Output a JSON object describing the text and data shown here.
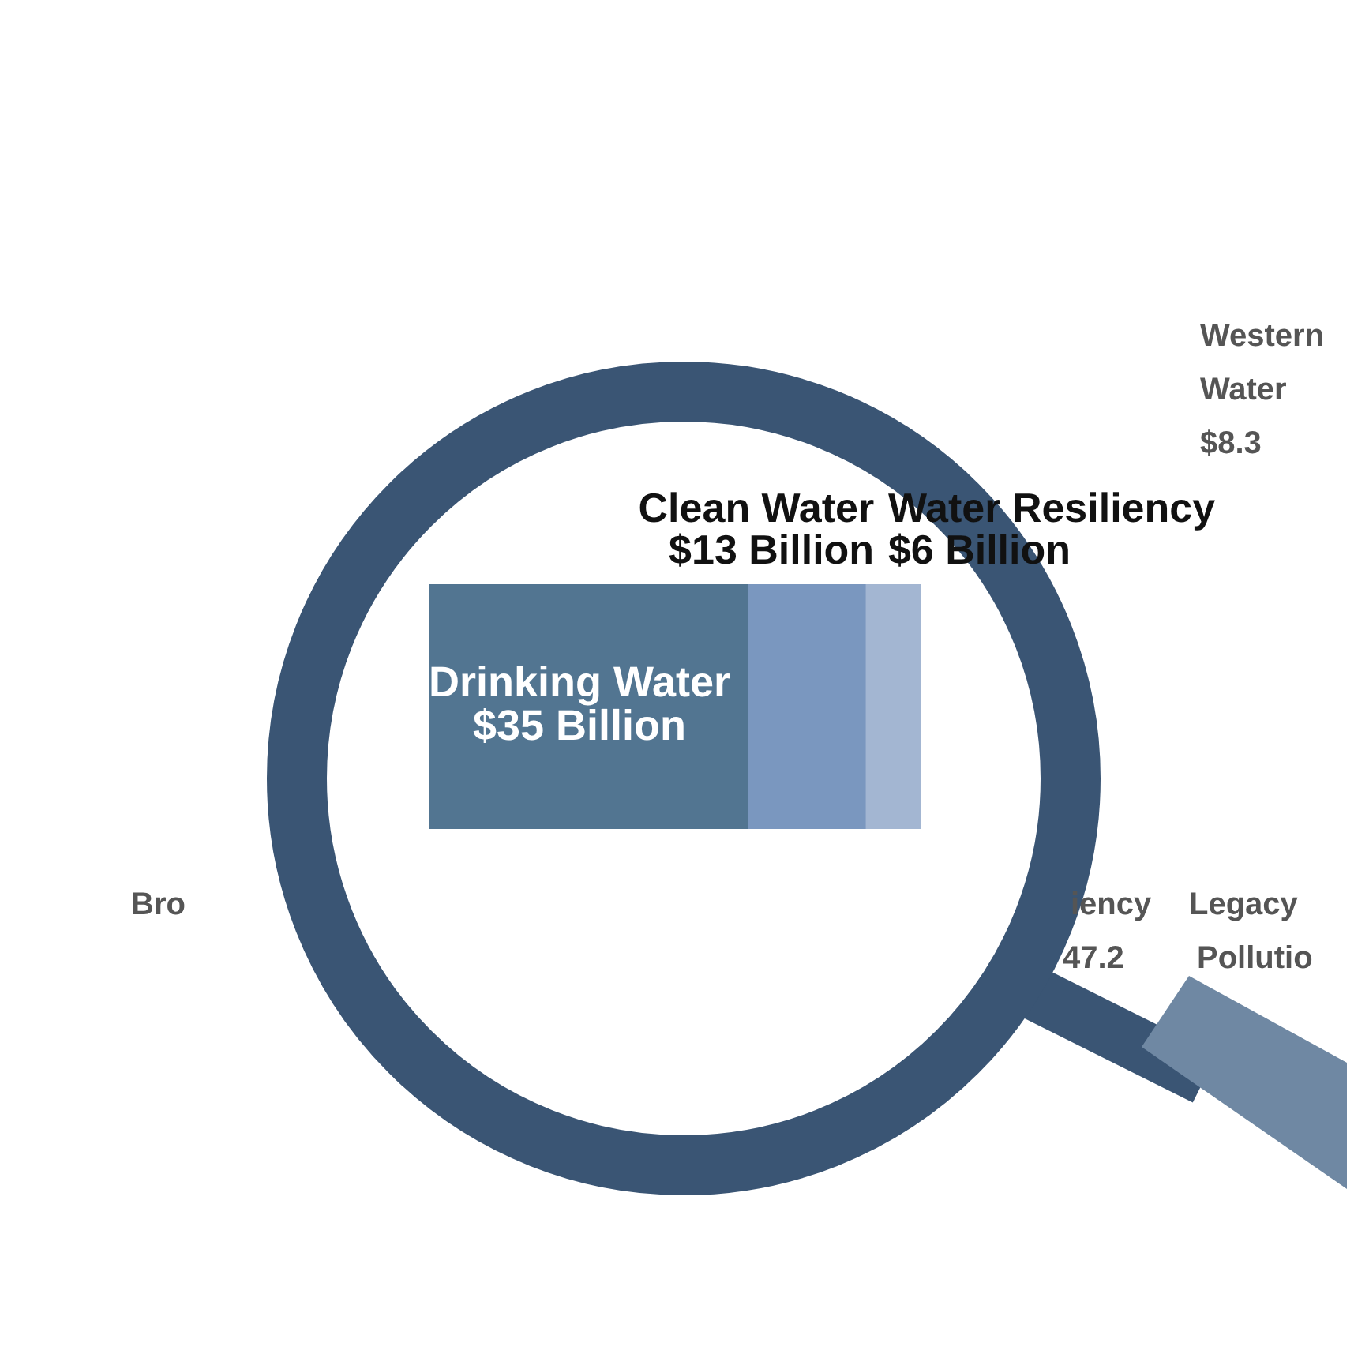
{
  "chart_data": {
    "type": "bar",
    "orientation": "horizontal",
    "stacked": true,
    "categories": [
      null
    ],
    "series": [
      {
        "name": "Drinking Water",
        "color": "#527591",
        "values": [
          35
        ],
        "value_labels": [
          "$35 Billion"
        ]
      },
      {
        "name": "Clean Water",
        "color": "#7a97bf",
        "values": [
          13
        ],
        "value_labels": [
          "$13 Billion"
        ]
      },
      {
        "name": "Water Resiliency",
        "color": "#a3b6d2",
        "values": [
          6
        ],
        "value_labels": [
          "$6 Billion"
        ]
      }
    ],
    "annotations": [
      "Western\nWater\n$8.3",
      "Bro",
      "iency",
      "47.2",
      "Legacy",
      "Pollutio"
    ],
    "legend": false,
    "grid": false
  }
}
